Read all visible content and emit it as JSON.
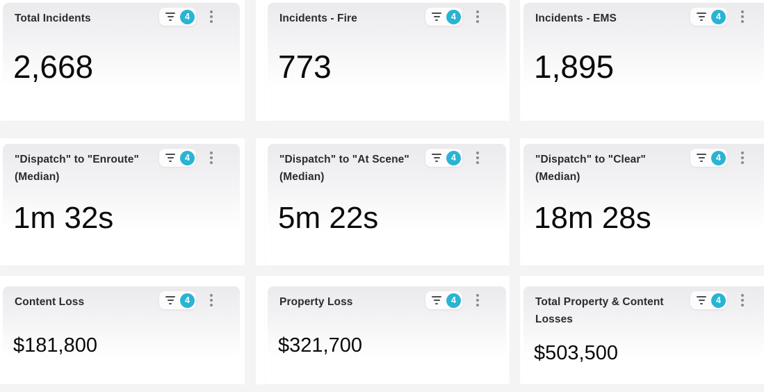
{
  "colors": {
    "badge_bg": "#29b4d2",
    "badge_text": "#ffffff",
    "gutter": "#f4f4f5",
    "card_gradient_top": "#ebebed",
    "title": "#2b2b30",
    "value": "#0a0a0b"
  },
  "cards": [
    {
      "title": "Total Incidents",
      "value": "2,668",
      "filter_count": "4"
    },
    {
      "title": "Incidents - Fire",
      "value": "773",
      "filter_count": "4"
    },
    {
      "title": "Incidents - EMS",
      "value": "1,895",
      "filter_count": "4"
    },
    {
      "title": "\"Dispatch\" to \"Enroute\" (Median)",
      "value": "1m 32s",
      "filter_count": "4"
    },
    {
      "title": "\"Dispatch\" to \"At Scene\" (Median)",
      "value": "5m 22s",
      "filter_count": "4"
    },
    {
      "title": "\"Dispatch\" to \"Clear\" (Median)",
      "value": "18m 28s",
      "filter_count": "4"
    },
    {
      "title": "Content Loss",
      "value": "$181,800",
      "filter_count": "4"
    },
    {
      "title": "Property Loss",
      "value": "$321,700",
      "filter_count": "4"
    },
    {
      "title": "Total Property & Content Losses",
      "value": "$503,500",
      "filter_count": "4"
    }
  ]
}
